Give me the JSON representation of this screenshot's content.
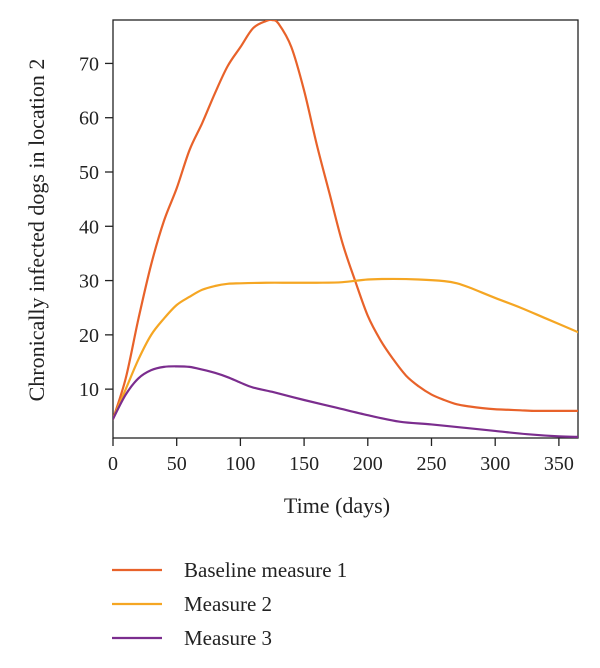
{
  "chart_data": {
    "type": "line",
    "title": "",
    "xlabel": "Time (days)",
    "ylabel": "Chronically infected dogs in location 2",
    "xlim": [
      0,
      365
    ],
    "ylim": [
      1,
      78
    ],
    "xticks": [
      0,
      50,
      100,
      150,
      200,
      250,
      300,
      350
    ],
    "yticks": [
      10,
      20,
      30,
      40,
      50,
      60,
      70
    ],
    "grid": false,
    "legend_position": "bottom",
    "series": [
      {
        "name": "Baseline measure 1",
        "color": "#e8622a",
        "x": [
          0,
          10,
          20,
          30,
          40,
          50,
          60,
          70,
          80,
          90,
          100,
          110,
          120,
          125,
          130,
          140,
          150,
          160,
          170,
          180,
          190,
          200,
          210,
          220,
          230,
          240,
          250,
          260,
          270,
          280,
          290,
          300,
          310,
          320,
          330,
          340,
          350,
          365
        ],
        "values": [
          4.5,
          12,
          23,
          33,
          41,
          47,
          54,
          59,
          64.5,
          69.5,
          73,
          76.5,
          77.8,
          78,
          77.3,
          73,
          65,
          55,
          46,
          37,
          30,
          23.5,
          19,
          15.5,
          12.5,
          10.5,
          9,
          8,
          7.2,
          6.8,
          6.5,
          6.3,
          6.2,
          6.1,
          6,
          6,
          6,
          6
        ]
      },
      {
        "name": "Measure 2",
        "color": "#f5a623",
        "x": [
          0,
          10,
          20,
          30,
          40,
          50,
          60,
          70,
          80,
          90,
          100,
          120,
          140,
          160,
          180,
          200,
          220,
          240,
          260,
          270,
          280,
          300,
          320,
          340,
          365
        ],
        "values": [
          4.5,
          10,
          15.5,
          20,
          23,
          25.5,
          27,
          28.3,
          29,
          29.4,
          29.5,
          29.6,
          29.6,
          29.6,
          29.7,
          30.2,
          30.3,
          30.2,
          29.9,
          29.5,
          28.7,
          26.8,
          25,
          23,
          20.5
        ]
      },
      {
        "name": "Measure 3",
        "color": "#7b2d8e",
        "x": [
          0,
          10,
          20,
          30,
          40,
          50,
          60,
          70,
          80,
          90,
          100,
          110,
          125,
          150,
          175,
          200,
          225,
          250,
          275,
          300,
          325,
          350,
          365
        ],
        "values": [
          4.5,
          9,
          12,
          13.5,
          14.1,
          14.2,
          14.1,
          13.6,
          13,
          12.2,
          11.2,
          10.3,
          9.5,
          8,
          6.6,
          5.2,
          4,
          3.5,
          2.9,
          2.3,
          1.7,
          1.3,
          1.2
        ]
      }
    ]
  }
}
